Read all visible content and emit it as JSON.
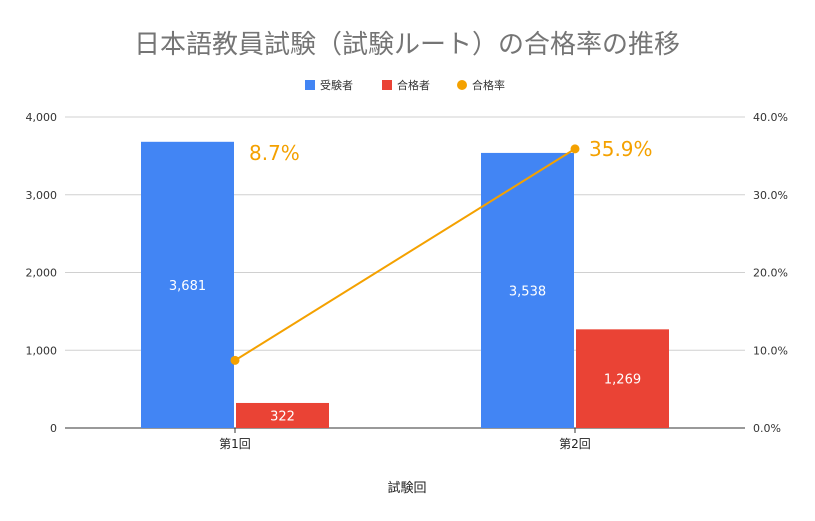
{
  "chart_data": {
    "type": "bar",
    "title": "日本語教員試験（試験ルート）の合格率の推移",
    "xlabel": "試験回",
    "categories": [
      "第1回",
      "第2回"
    ],
    "series": [
      {
        "name": "受験者",
        "values": [
          3681,
          3538
        ],
        "labels": [
          "3,681",
          "3,538"
        ],
        "color": "#4285F4",
        "axis": "left"
      },
      {
        "name": "合格者",
        "values": [
          322,
          1269
        ],
        "labels": [
          "322",
          "1,269"
        ],
        "color": "#EA4335",
        "axis": "left"
      },
      {
        "name": "合格率",
        "type": "line",
        "values": [
          8.7,
          35.9
        ],
        "labels": [
          "8.7%",
          "35.9%"
        ],
        "color": "#F4A100",
        "axis": "right"
      }
    ],
    "y_left": {
      "range": [
        0,
        4000
      ],
      "ticks": [
        "0",
        "1,000",
        "2,000",
        "3,000",
        "4,000"
      ],
      "values": [
        0,
        1000,
        2000,
        3000,
        4000
      ]
    },
    "y_right": {
      "range": [
        0,
        40
      ],
      "ticks": [
        "0.0%",
        "10.0%",
        "20.0%",
        "30.0%",
        "40.0%"
      ],
      "values": [
        0,
        10,
        20,
        30,
        40
      ]
    },
    "legend_position": "top",
    "grid": true
  }
}
